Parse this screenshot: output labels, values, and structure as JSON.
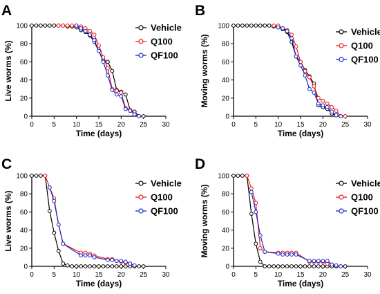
{
  "chart_data": [
    {
      "panel": "A",
      "type": "line",
      "xlabel": "Time (days)",
      "ylabel": "Live worms (%)",
      "xlim": [
        0,
        30
      ],
      "ylim": [
        0,
        100
      ],
      "xticks": [
        0,
        5,
        10,
        15,
        20,
        25,
        30
      ],
      "yticks": [
        0,
        20,
        40,
        60,
        80,
        100
      ],
      "grid": false,
      "legend": "top-right",
      "series": [
        {
          "name": "Vehicle",
          "color": "#000000",
          "x": [
            0,
            1,
            2,
            3,
            4,
            5,
            6,
            7,
            8,
            9,
            10,
            11,
            12,
            13,
            14,
            15,
            16,
            17,
            18,
            19,
            20,
            21,
            22,
            23,
            24,
            25
          ],
          "y": [
            100,
            100,
            100,
            100,
            100,
            100,
            100,
            100,
            99,
            99,
            98,
            95,
            93,
            89,
            82,
            72,
            62,
            60,
            50,
            29,
            27,
            24,
            7,
            5,
            0,
            0
          ]
        },
        {
          "name": "Q100",
          "color": "#e8191f",
          "x": [
            6,
            7,
            8,
            9,
            10,
            11,
            12,
            13,
            14,
            15,
            16,
            17,
            18,
            19,
            20,
            21,
            22,
            23,
            24
          ],
          "y": [
            100,
            100,
            100,
            100,
            100,
            99,
            97,
            94,
            90,
            78,
            65,
            53,
            30,
            28,
            26,
            9,
            7,
            2,
            0
          ]
        },
        {
          "name": "QF100",
          "color": "#1a26c9",
          "x": [
            10,
            11,
            12,
            13,
            14,
            15,
            16,
            17,
            18,
            19,
            20,
            21,
            22,
            23,
            24
          ],
          "y": [
            100,
            97,
            94,
            90,
            84,
            72,
            60,
            45,
            29,
            24,
            22,
            8,
            6,
            2,
            0
          ]
        }
      ]
    },
    {
      "panel": "B",
      "type": "line",
      "xlabel": "Time (days)",
      "ylabel": "Moving worms (%)",
      "xlim": [
        0,
        30
      ],
      "ylim": [
        0,
        100
      ],
      "xticks": [
        0,
        5,
        10,
        15,
        20,
        25,
        30
      ],
      "yticks": [
        0,
        20,
        40,
        60,
        80,
        100
      ],
      "grid": false,
      "legend": "top-right",
      "series": [
        {
          "name": "Vehicle",
          "color": "#000000",
          "x": [
            0,
            1,
            2,
            3,
            4,
            5,
            6,
            7,
            8,
            9,
            10,
            11,
            12,
            13,
            14,
            15,
            16,
            17,
            18,
            19,
            20,
            21,
            22,
            23,
            24,
            25
          ],
          "y": [
            100,
            100,
            100,
            100,
            100,
            100,
            100,
            100,
            100,
            99,
            98,
            96,
            93,
            82,
            66,
            60,
            51,
            44,
            36,
            12,
            10,
            8,
            3,
            1,
            0,
            0
          ]
        },
        {
          "name": "Q100",
          "color": "#e8191f",
          "x": [
            9,
            10,
            11,
            12,
            13,
            14,
            15,
            16,
            17,
            18,
            19,
            20,
            21,
            22,
            23,
            24,
            25
          ],
          "y": [
            100,
            100,
            97,
            95,
            90,
            77,
            60,
            50,
            43,
            33,
            20,
            17,
            14,
            10,
            6,
            0,
            0
          ]
        },
        {
          "name": "QF100",
          "color": "#1a26c9",
          "x": [
            10,
            11,
            12,
            13,
            14,
            15,
            16,
            17,
            18,
            19,
            20,
            21,
            22,
            23,
            24
          ],
          "y": [
            98,
            97,
            94,
            86,
            66,
            56,
            45,
            30,
            26,
            14,
            12,
            10,
            5,
            1,
            0
          ]
        }
      ]
    },
    {
      "panel": "C",
      "type": "line",
      "xlabel": "Time (days)",
      "ylabel": "Live worms (%)",
      "xlim": [
        0,
        30
      ],
      "ylim": [
        0,
        100
      ],
      "xticks": [
        0,
        5,
        10,
        15,
        20,
        25,
        30
      ],
      "yticks": [
        0,
        20,
        40,
        60,
        80,
        100
      ],
      "grid": false,
      "legend": "top-right",
      "series": [
        {
          "name": "Vehicle",
          "color": "#000000",
          "x": [
            0,
            1,
            2,
            3,
            4,
            5,
            6,
            7,
            8,
            9,
            10,
            11,
            12,
            13,
            14,
            15,
            16,
            17,
            18,
            19,
            20,
            21,
            22,
            23,
            24,
            25
          ],
          "y": [
            100,
            100,
            100,
            100,
            61,
            37,
            17,
            3,
            1,
            0,
            0,
            0,
            0,
            0,
            0,
            0,
            0,
            0,
            0,
            0,
            0,
            0,
            0,
            0,
            0,
            0
          ]
        },
        {
          "name": "Q100",
          "color": "#e8191f",
          "x": [
            3,
            4,
            5,
            6,
            7,
            11,
            12,
            13,
            14,
            17,
            18,
            19,
            20,
            21,
            22,
            23
          ],
          "y": [
            100,
            87,
            75,
            46,
            25,
            15,
            15,
            14,
            12,
            8,
            8,
            6,
            5,
            4,
            3,
            1
          ]
        },
        {
          "name": "QF100",
          "color": "#1a26c9",
          "x": [
            4,
            5,
            6,
            7,
            11,
            12,
            13,
            14,
            17,
            18,
            19,
            20,
            21,
            22,
            23
          ],
          "y": [
            87,
            72,
            46,
            25,
            12,
            12,
            12,
            10,
            7,
            7,
            6,
            6,
            5,
            3,
            1
          ]
        }
      ]
    },
    {
      "panel": "D",
      "type": "line",
      "xlabel": "Time (days)",
      "ylabel": "Moving worms (%)",
      "xlim": [
        0,
        30
      ],
      "ylim": [
        0,
        100
      ],
      "xticks": [
        0,
        5,
        10,
        15,
        20,
        25,
        30
      ],
      "yticks": [
        0,
        20,
        40,
        60,
        80,
        100
      ],
      "grid": false,
      "legend": "top-right",
      "series": [
        {
          "name": "Vehicle",
          "color": "#000000",
          "x": [
            0,
            1,
            2,
            3,
            4,
            5,
            6,
            7,
            8,
            9,
            10,
            11,
            12,
            13,
            14,
            15,
            16,
            17,
            18,
            19,
            20,
            21,
            22,
            23,
            24,
            25
          ],
          "y": [
            100,
            100,
            100,
            100,
            58,
            25,
            5,
            0,
            0,
            0,
            0,
            0,
            0,
            0,
            0,
            0,
            0,
            0,
            0,
            0,
            0,
            0,
            0,
            0,
            0,
            0
          ]
        },
        {
          "name": "Q100",
          "color": "#e8191f",
          "x": [
            3,
            4,
            5,
            6,
            7,
            10,
            11,
            12,
            13,
            14,
            17,
            18,
            19,
            20,
            21,
            22,
            23,
            24
          ],
          "y": [
            100,
            86,
            70,
            20,
            16,
            15,
            15,
            15,
            15,
            15,
            5,
            5,
            5,
            5,
            3,
            2,
            1,
            0
          ]
        },
        {
          "name": "QF100",
          "color": "#1a26c9",
          "x": [
            4,
            5,
            6,
            7,
            10,
            11,
            12,
            13,
            14,
            17,
            18,
            19,
            20,
            21,
            22,
            23,
            24
          ],
          "y": [
            82,
            60,
            34,
            16,
            14,
            13,
            13,
            13,
            13,
            6,
            6,
            6,
            6,
            6,
            2,
            1,
            0
          ]
        }
      ]
    }
  ]
}
